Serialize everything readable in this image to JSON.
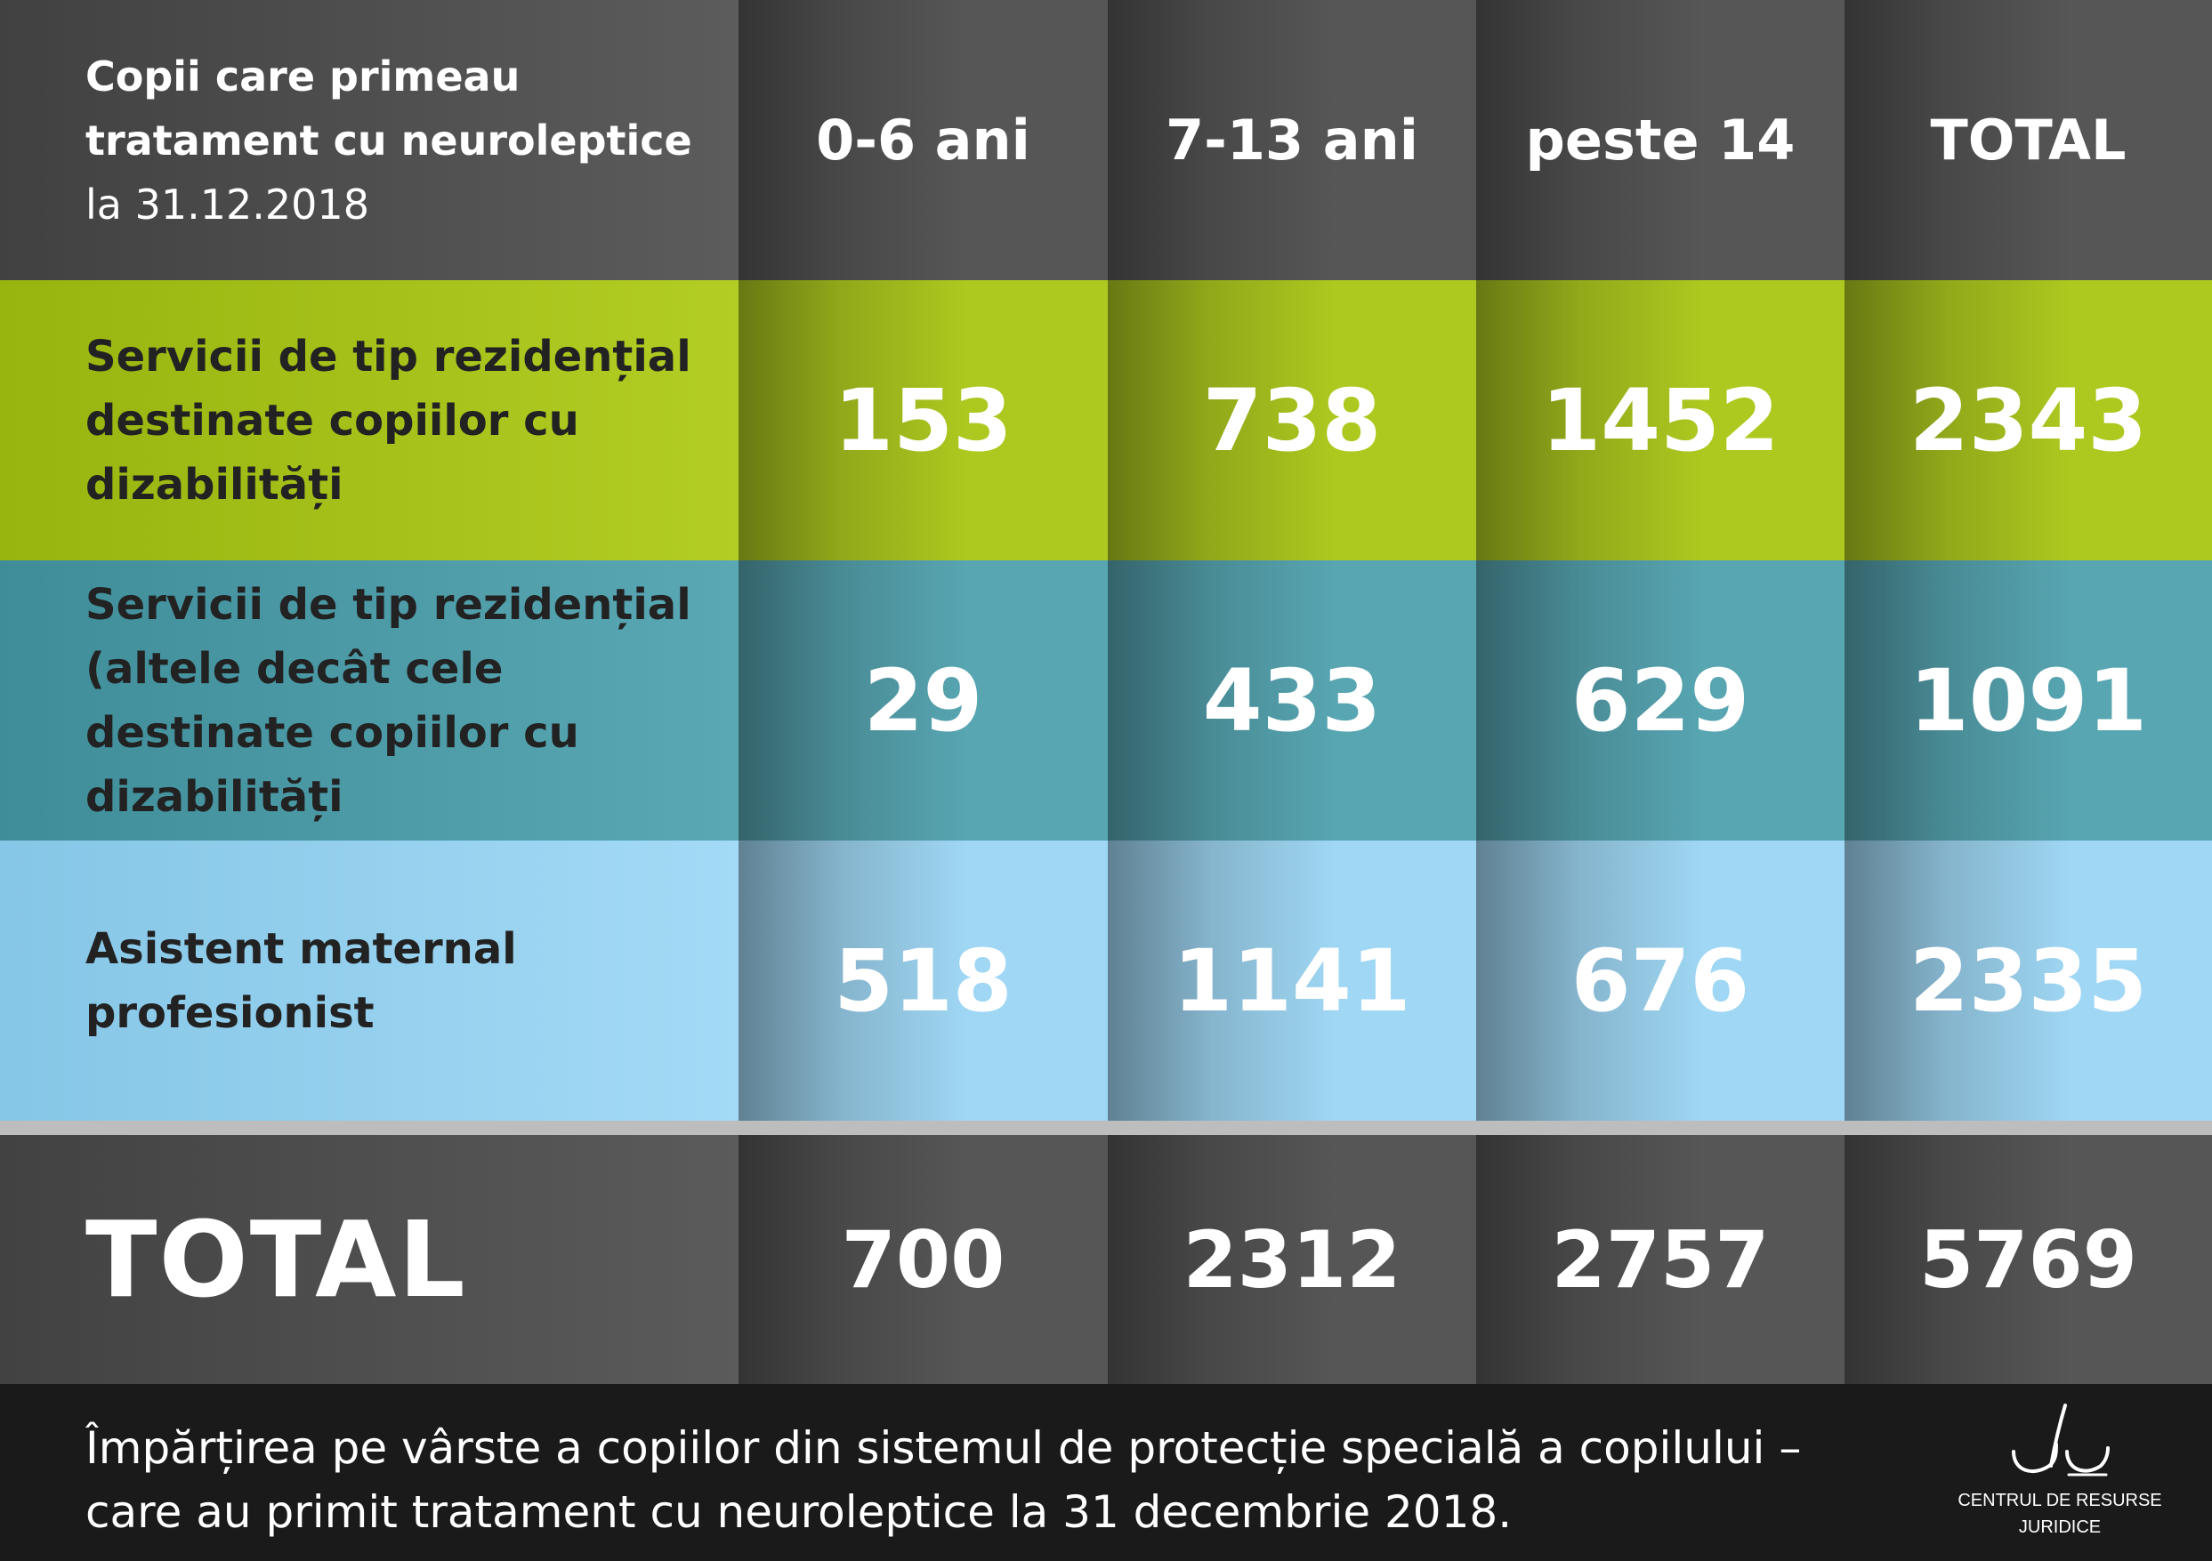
{
  "chart_data": {
    "type": "table",
    "title_lines": [
      "Copii care primeau",
      "tratament cu neuroleptice",
      "la 31.12.2018"
    ],
    "columns": [
      "0-6 ani",
      "7-13 ani",
      "peste 14",
      "TOTAL"
    ],
    "rows": [
      {
        "label": "Servicii de tip rezidențial destinate copiilor cu dizabilități",
        "values": [
          "153",
          "738",
          "1452",
          "2343"
        ]
      },
      {
        "label": "Servicii de tip rezidențial (altele decât cele destinate copiilor cu dizabilități",
        "values": [
          "29",
          "433",
          "629",
          "1091"
        ]
      },
      {
        "label": "Asistent maternal profesionist",
        "values": [
          "518",
          "1141",
          "676",
          "2335"
        ]
      }
    ],
    "total": {
      "label": "TOTAL",
      "values": [
        "700",
        "2312",
        "2757",
        "5769"
      ]
    },
    "caption_lines": [
      "Împărțirea pe vârste a copiilor din sistemul de protecție specială a copilului –",
      "care au primit tratament cu neuroleptice la 31 decembrie 2018."
    ]
  },
  "logo": {
    "line1": "CENTRUL DE RESURSE",
    "line2": "JURIDICE",
    "icon": "crj-logo-icon"
  },
  "colors": {
    "header": "#565656",
    "row_residential_disability": "#adc91f",
    "row_residential_other": "#57a6b2",
    "row_foster": "#9fd7f4",
    "total": "#565656",
    "footer": "#1a1a1a"
  }
}
